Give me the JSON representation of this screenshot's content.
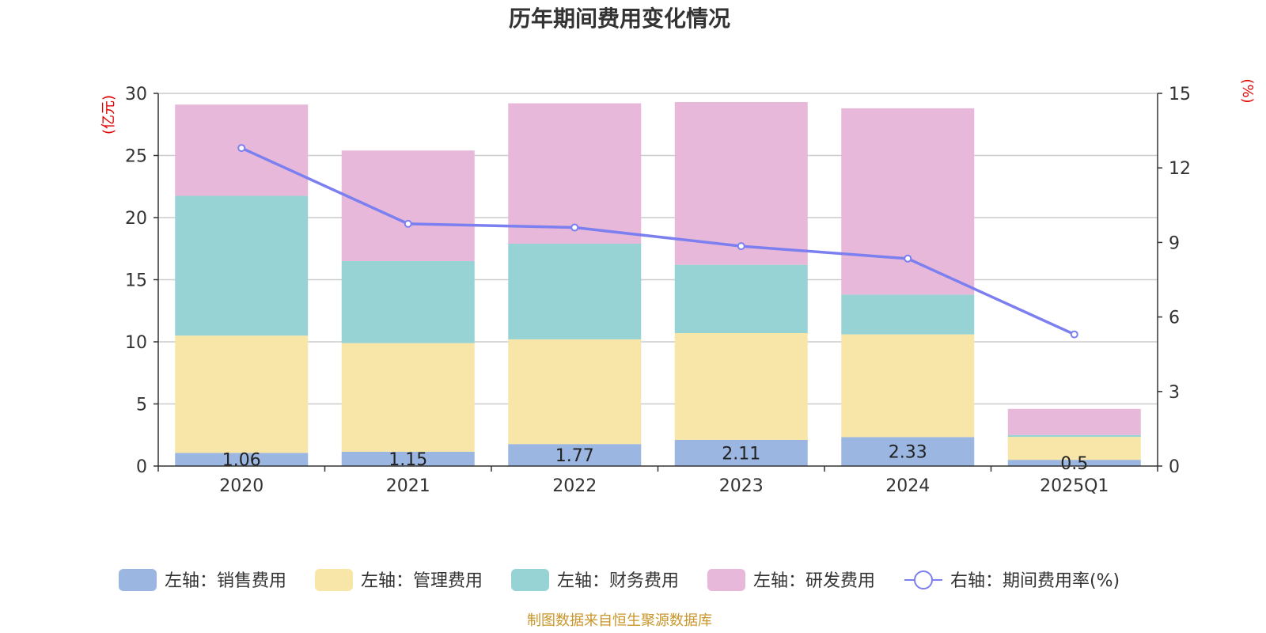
{
  "chart_data": {
    "type": "bar",
    "title": "历年期间费用变化情况",
    "categories": [
      "2020",
      "2021",
      "2022",
      "2023",
      "2024",
      "2025Q1"
    ],
    "left_axis": {
      "unit": "(亿元)",
      "ylim": [
        0,
        30
      ],
      "ticks": [
        "0",
        "5",
        "10",
        "15",
        "20",
        "25",
        "30"
      ]
    },
    "right_axis": {
      "unit": "(%)",
      "ylim": [
        0,
        15
      ],
      "ticks": [
        "0",
        "3",
        "6",
        "9",
        "12",
        "15"
      ]
    },
    "series": [
      {
        "name": "左轴：销售费用",
        "axis": "left",
        "stack": true,
        "color": "#9bb6e0",
        "values": [
          1.06,
          1.15,
          1.77,
          2.11,
          2.33,
          0.5
        ],
        "labels": [
          "1.06",
          "1.15",
          "1.77",
          "2.11",
          "2.33",
          "0.5"
        ]
      },
      {
        "name": "左轴：管理费用",
        "axis": "left",
        "stack": true,
        "color": "#f8e6a8",
        "values": [
          9.44,
          8.75,
          8.43,
          8.59,
          8.27,
          1.85
        ]
      },
      {
        "name": "左轴：财务费用",
        "axis": "left",
        "stack": true,
        "color": "#97d3d4",
        "values": [
          11.25,
          6.6,
          7.7,
          5.5,
          3.2,
          0.15
        ]
      },
      {
        "name": "左轴：研发费用",
        "axis": "left",
        "stack": true,
        "color": "#e7b8d9",
        "values": [
          7.35,
          8.9,
          11.3,
          13.1,
          15.0,
          2.1
        ]
      },
      {
        "name": "右轴：期间费用率(%)",
        "axis": "right",
        "type": "line",
        "color": "#7b7ff0",
        "values": [
          12.8,
          9.75,
          9.6,
          8.85,
          8.35,
          5.3
        ]
      }
    ],
    "legend_position": "bottom",
    "grid": true
  },
  "source": "制图数据来自恒生聚源数据库",
  "colors": {
    "unit_label": "#e00000",
    "source": "#c8962a",
    "axis": "#333333",
    "grid": "#cccccc"
  }
}
